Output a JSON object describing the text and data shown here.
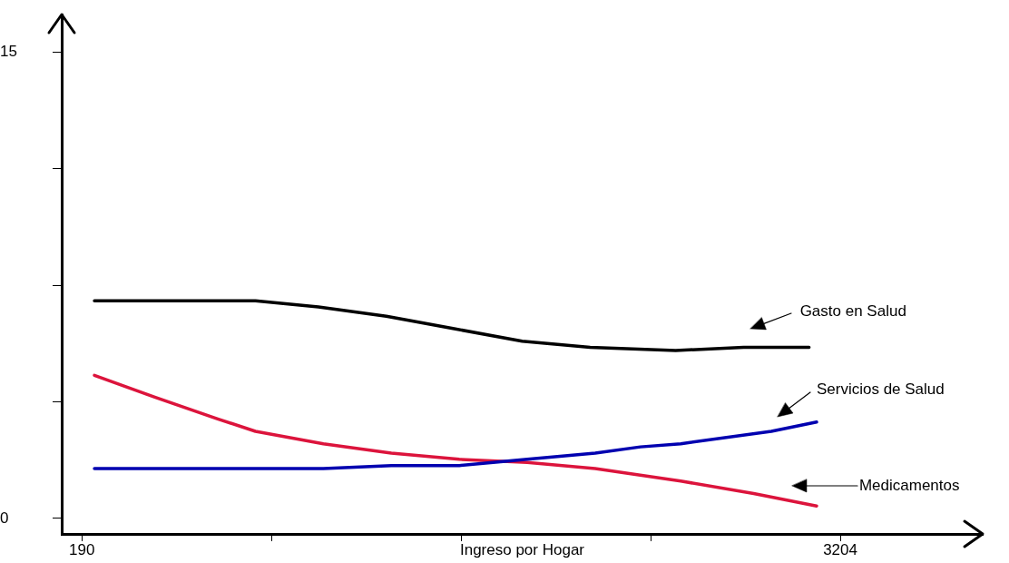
{
  "chart_data": {
    "type": "line",
    "xlabel": "Ingreso por Hogar",
    "xlim": [
      110,
      3770
    ],
    "xticks": [
      190,
      {
        "value": 943.5,
        "label": null
      },
      {
        "value": 1697,
        "label": null
      },
      {
        "value": 2450.5,
        "label": null
      },
      3204
    ],
    "ylim": [
      -0.5,
      16.2
    ],
    "yticks": [
      0,
      {
        "value": 3.75,
        "label": null
      },
      {
        "value": 7.5,
        "label": null
      },
      {
        "value": 11.25,
        "label": null
      },
      15
    ],
    "grid": false,
    "marker": "none",
    "line_style": "solid",
    "annotations": [
      "Gasto en Salud",
      "Servicios de Salud",
      "Medicamentos"
    ],
    "series": [
      {
        "color": "#000000",
        "x": [
          240,
          480,
          730,
          880,
          1130,
          1400,
          1670,
          1940,
          2210,
          2550,
          2820,
          3080
        ],
        "values": [
          7.0,
          7.0,
          7.0,
          7.0,
          6.8,
          6.5,
          6.1,
          5.7,
          5.5,
          5.4,
          5.5,
          5.5
        ]
      },
      {
        "color": "#0000b0",
        "x": [
          240,
          350,
          730,
          1150,
          1420,
          1690,
          1960,
          2230,
          2410,
          2570,
          2930,
          3110
        ],
        "values": [
          1.6,
          1.6,
          1.6,
          1.6,
          1.7,
          1.7,
          1.9,
          2.1,
          2.3,
          2.4,
          2.8,
          3.1
        ]
      },
      {
        "color": "#dc143c",
        "x": [
          240,
          480,
          730,
          880,
          1150,
          1420,
          1690,
          1960,
          2230,
          2570,
          2860,
          3110
        ],
        "values": [
          4.6,
          3.9,
          3.2,
          2.8,
          2.4,
          2.1,
          1.9,
          1.8,
          1.6,
          1.2,
          0.8,
          0.4
        ]
      }
    ]
  }
}
